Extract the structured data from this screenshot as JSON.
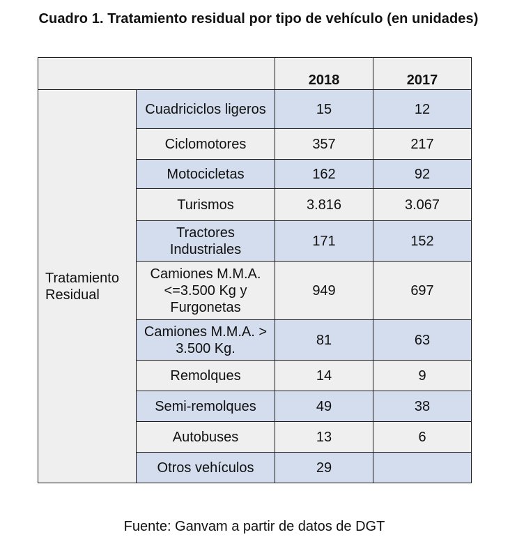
{
  "title": "Cuadro 1. Tratamiento residual por tipo de vehículo (en unidades)",
  "table": {
    "years": [
      "2018",
      "2017"
    ],
    "group_label": "Tratamiento Residual",
    "rows": [
      {
        "label": "Cuadriciclos ligeros",
        "v2018": "15",
        "v2017": "12"
      },
      {
        "label": "Ciclomotores",
        "v2018": "357",
        "v2017": "217"
      },
      {
        "label": "Motocicletas",
        "v2018": "162",
        "v2017": "92"
      },
      {
        "label": "Turismos",
        "v2018": "3.816",
        "v2017": "3.067"
      },
      {
        "label": "Tractores Industriales",
        "v2018": "171",
        "v2017": "152"
      },
      {
        "label": "Camiones M.M.A. <=3.500 Kg y Furgonetas",
        "v2018": "949",
        "v2017": "697"
      },
      {
        "label": "Camiones M.M.A. > 3.500 Kg.",
        "v2018": "81",
        "v2017": "63"
      },
      {
        "label": "Remolques",
        "v2018": "14",
        "v2017": "9"
      },
      {
        "label": "Semi-remolques",
        "v2018": "49",
        "v2017": "38"
      },
      {
        "label": "Autobuses",
        "v2018": "13",
        "v2017": "6"
      },
      {
        "label": "Otros vehículos",
        "v2018": "29",
        "v2017": ""
      }
    ]
  },
  "source": "Fuente: Ganvam a partir de datos de DGT",
  "colors": {
    "row_blue": "#d4dded",
    "row_grey": "#efefef",
    "border": "#1a1a1a"
  }
}
